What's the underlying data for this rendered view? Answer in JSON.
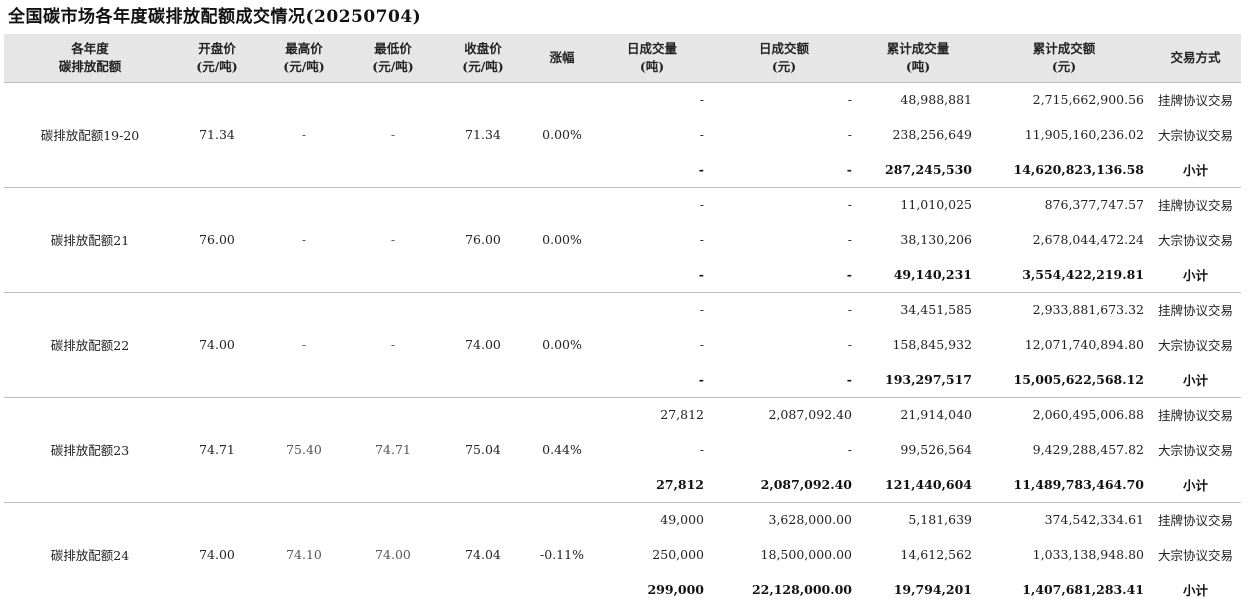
{
  "title": "全国碳市场各年度碳排放配额成交情况(20250704)",
  "table": {
    "headers": [
      {
        "line1": "各年度",
        "line2": "碳排放配额"
      },
      {
        "line1": "开盘价",
        "line2": "(元/吨)"
      },
      {
        "line1": "最高价",
        "line2": "(元/吨)"
      },
      {
        "line1": "最低价",
        "line2": "(元/吨)"
      },
      {
        "line1": "收盘价",
        "line2": "(元/吨)"
      },
      {
        "line1": "涨幅",
        "line2": ""
      },
      {
        "line1": "日成交量",
        "line2": "(吨)"
      },
      {
        "line1": "日成交额",
        "line2": "(元)"
      },
      {
        "line1": "累计成交量",
        "line2": "(吨)"
      },
      {
        "line1": "累计成交额",
        "line2": "(元)"
      },
      {
        "line1": "交易方式",
        "line2": ""
      }
    ],
    "groups": [
      {
        "name": "碳排放配额19-20",
        "open": "71.34",
        "high": "-",
        "low": "-",
        "close": "71.34",
        "change": "0.00%",
        "rows": [
          {
            "daily_volume": "-",
            "daily_amount": "-",
            "cum_volume": "48,988,881",
            "cum_amount": "2,715,662,900.56",
            "method": "挂牌协议交易"
          },
          {
            "daily_volume": "-",
            "daily_amount": "-",
            "cum_volume": "238,256,649",
            "cum_amount": "11,905,160,236.02",
            "method": "大宗协议交易"
          },
          {
            "daily_volume": "-",
            "daily_amount": "-",
            "cum_volume": "287,245,530",
            "cum_amount": "14,620,823,136.58",
            "method": "小计"
          }
        ]
      },
      {
        "name": "碳排放配额21",
        "open": "76.00",
        "high": "-",
        "low": "-",
        "close": "76.00",
        "change": "0.00%",
        "rows": [
          {
            "daily_volume": "-",
            "daily_amount": "-",
            "cum_volume": "11,010,025",
            "cum_amount": "876,377,747.57",
            "method": "挂牌协议交易"
          },
          {
            "daily_volume": "-",
            "daily_amount": "-",
            "cum_volume": "38,130,206",
            "cum_amount": "2,678,044,472.24",
            "method": "大宗协议交易"
          },
          {
            "daily_volume": "-",
            "daily_amount": "-",
            "cum_volume": "49,140,231",
            "cum_amount": "3,554,422,219.81",
            "method": "小计"
          }
        ]
      },
      {
        "name": "碳排放配额22",
        "open": "74.00",
        "high": "-",
        "low": "-",
        "close": "74.00",
        "change": "0.00%",
        "rows": [
          {
            "daily_volume": "-",
            "daily_amount": "-",
            "cum_volume": "34,451,585",
            "cum_amount": "2,933,881,673.32",
            "method": "挂牌协议交易"
          },
          {
            "daily_volume": "-",
            "daily_amount": "-",
            "cum_volume": "158,845,932",
            "cum_amount": "12,071,740,894.80",
            "method": "大宗协议交易"
          },
          {
            "daily_volume": "-",
            "daily_amount": "-",
            "cum_volume": "193,297,517",
            "cum_amount": "15,005,622,568.12",
            "method": "小计"
          }
        ]
      },
      {
        "name": "碳排放配额23",
        "open": "74.71",
        "high": "75.40",
        "low": "74.71",
        "close": "75.04",
        "change": "0.44%",
        "rows": [
          {
            "daily_volume": "27,812",
            "daily_amount": "2,087,092.40",
            "cum_volume": "21,914,040",
            "cum_amount": "2,060,495,006.88",
            "method": "挂牌协议交易"
          },
          {
            "daily_volume": "-",
            "daily_amount": "-",
            "cum_volume": "99,526,564",
            "cum_amount": "9,429,288,457.82",
            "method": "大宗协议交易"
          },
          {
            "daily_volume": "27,812",
            "daily_amount": "2,087,092.40",
            "cum_volume": "121,440,604",
            "cum_amount": "11,489,783,464.70",
            "method": "小计"
          }
        ]
      },
      {
        "name": "碳排放配额24",
        "open": "74.00",
        "high": "74.10",
        "low": "74.00",
        "close": "74.04",
        "change": "-0.11%",
        "rows": [
          {
            "daily_volume": "49,000",
            "daily_amount": "3,628,000.00",
            "cum_volume": "5,181,639",
            "cum_amount": "374,542,334.61",
            "method": "挂牌协议交易"
          },
          {
            "daily_volume": "250,000",
            "daily_amount": "18,500,000.00",
            "cum_volume": "14,612,562",
            "cum_amount": "1,033,138,948.80",
            "method": "大宗协议交易"
          },
          {
            "daily_volume": "299,000",
            "daily_amount": "22,128,000.00",
            "cum_volume": "19,794,201",
            "cum_amount": "1,407,681,283.41",
            "method": "小计"
          }
        ]
      }
    ]
  }
}
